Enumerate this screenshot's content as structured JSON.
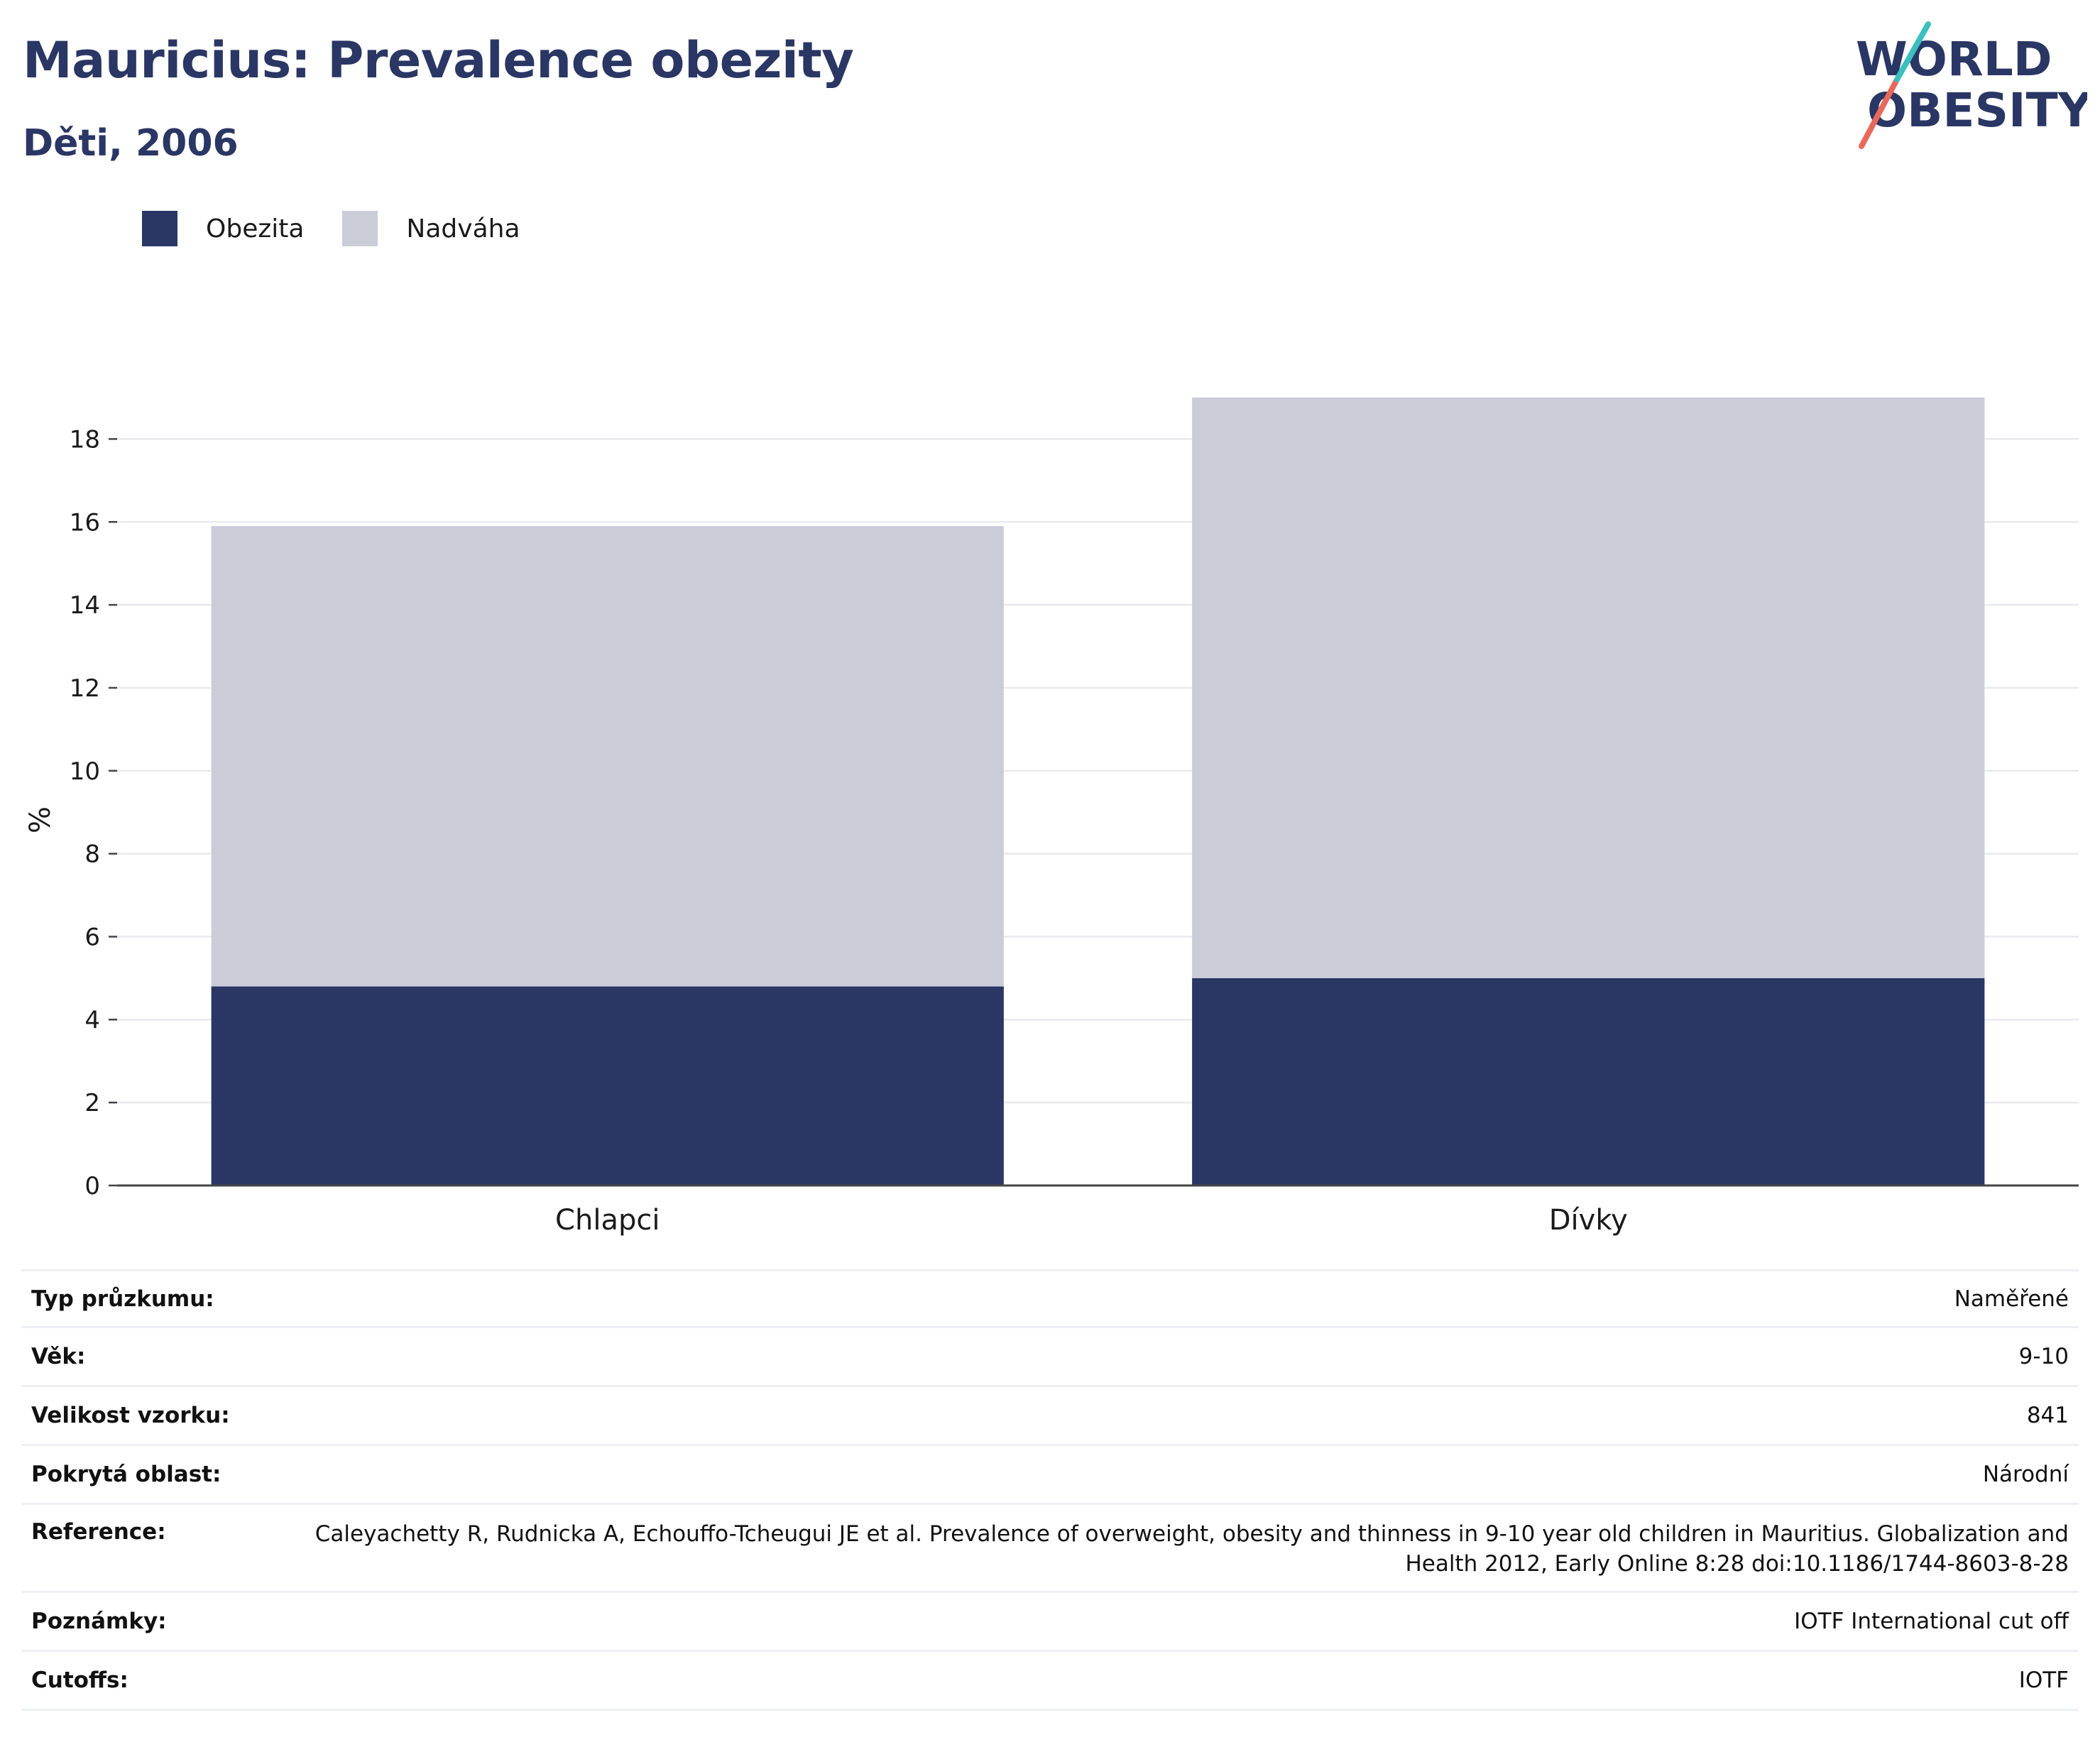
{
  "header": {
    "title": "Mauricius: Prevalence obezity",
    "subtitle": "Děti, 2006"
  },
  "logo": {
    "line1": "WORLD",
    "line2": "OBESITY"
  },
  "colors": {
    "obesity": "#2a3664",
    "overweight": "#cacdd8",
    "title": "#2a3664",
    "grid": "#e8e9ef",
    "axis": "#444444"
  },
  "legend": [
    {
      "label": "Obezita",
      "color": "#2a3664"
    },
    {
      "label": "Nadváha",
      "color": "#cacdd8"
    }
  ],
  "chart_data": {
    "type": "bar",
    "stacked": true,
    "categories": [
      "Chlapci",
      "Dívky"
    ],
    "series": [
      {
        "name": "Obezita",
        "values": [
          4.8,
          5.0
        ]
      },
      {
        "name": "Nadváha",
        "values": [
          11.1,
          14.0
        ]
      }
    ],
    "ylabel": "%",
    "ylim": [
      0,
      19
    ],
    "yticks": [
      0,
      2,
      4,
      6,
      8,
      10,
      12,
      14,
      16,
      18
    ],
    "grid": true,
    "legend_position": "top-left"
  },
  "details": [
    {
      "key": "Typ průzkumu:",
      "value": "Naměřené"
    },
    {
      "key": "Věk:",
      "value": "9-10"
    },
    {
      "key": "Velikost vzorku:",
      "value": "841"
    },
    {
      "key": "Pokrytá oblast:",
      "value": "Národní"
    },
    {
      "key": "Reference:",
      "value": "Caleyachetty R, Rudnicka A, Echouffo-Tcheugui JE et al. Prevalence of overweight, obesity and thinness in 9-10 year old children in Mauritius. Globalization and Health 2012, Early Online 8:28 doi:10.1186/1744-8603-8-28"
    },
    {
      "key": "Poznámky:",
      "value": "IOTF International cut off"
    },
    {
      "key": "Cutoffs:",
      "value": "IOTF"
    }
  ]
}
